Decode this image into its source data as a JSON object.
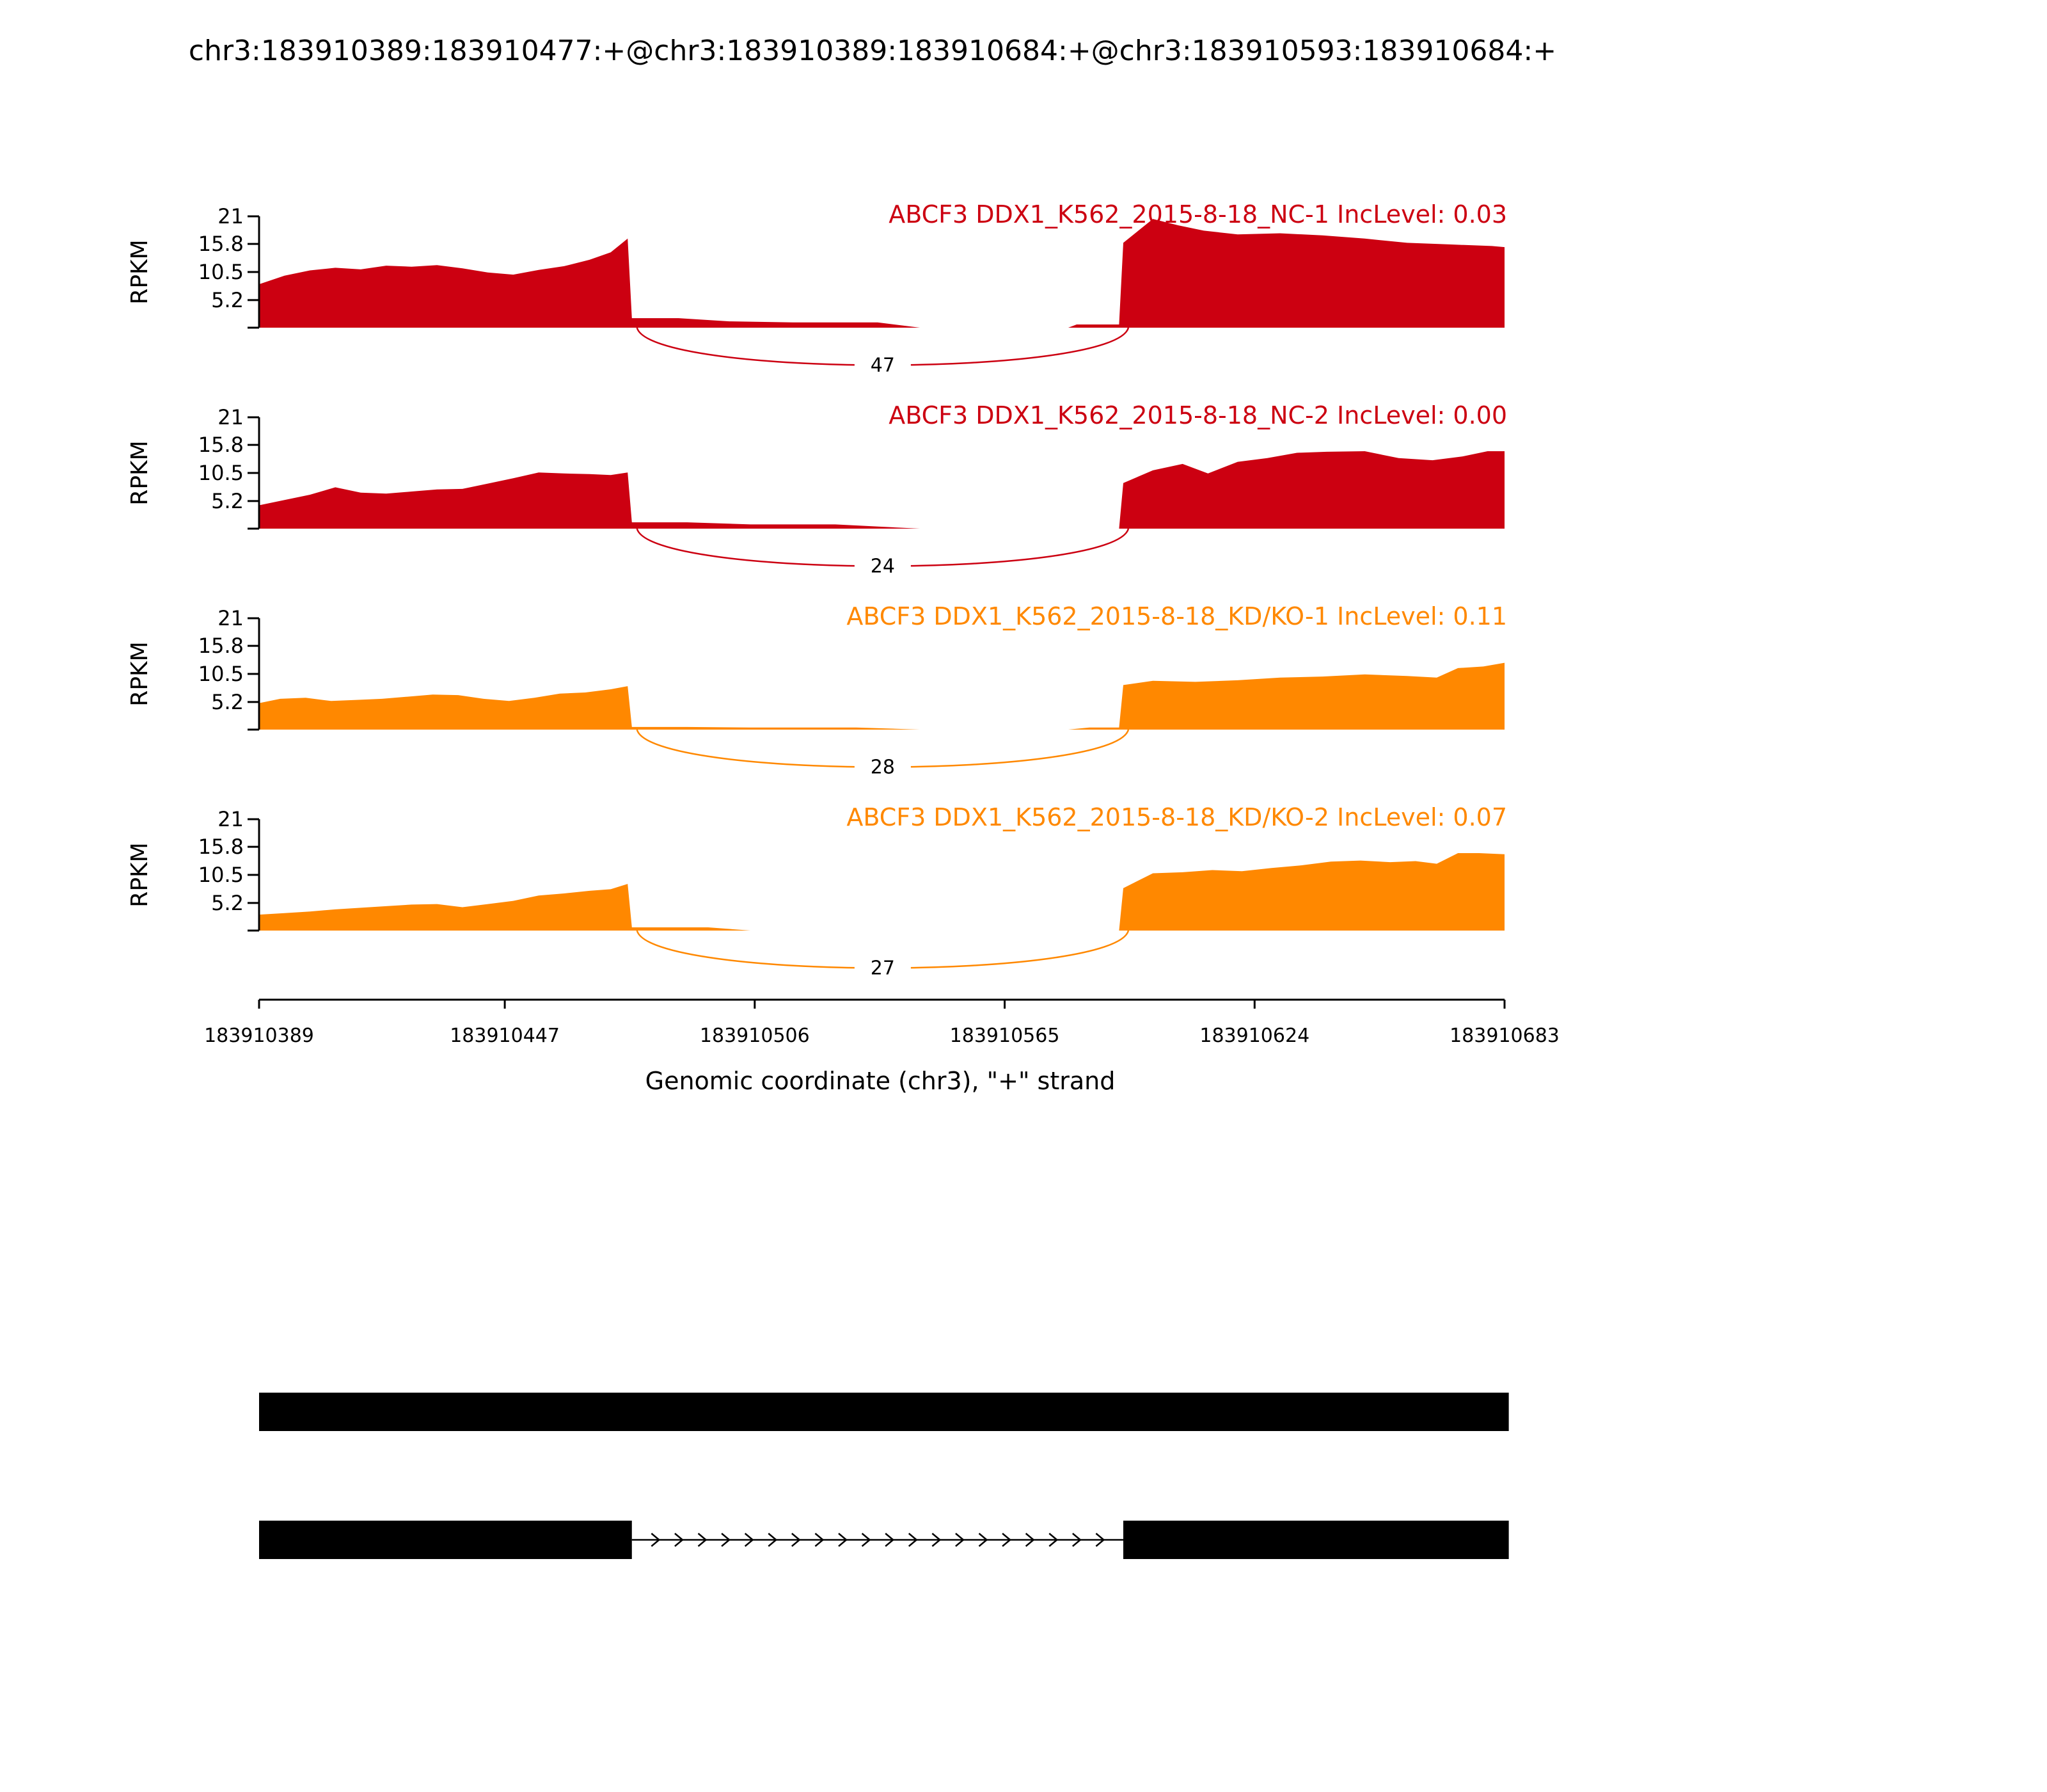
{
  "chart_data": {
    "type": "area",
    "title": "chr3:183910389:183910477:+@chr3:183910389:183910684:+@chr3:183910593:183910684:+",
    "xlabel": "Genomic coordinate (chr3), \"+\" strand",
    "ylabel": "RPKM",
    "xlim": [
      183910389,
      183910683
    ],
    "ylim": [
      0,
      21
    ],
    "x_ticks": [
      "183910389",
      "183910447",
      "183910506",
      "183910565",
      "183910624",
      "183910683"
    ],
    "y_ticks": [
      "21",
      "15.8",
      "10.5",
      "5.2"
    ],
    "junction": {
      "start": 183910477,
      "end": 183910593
    },
    "series": [
      {
        "name": "ABCF3 DDX1_K562_2015-8-18_NC-1 IncLevel: 0.03",
        "color": "#cc0011",
        "junction_count": "47",
        "coverage": [
          [
            183910389,
            8.2
          ],
          [
            183910395,
            9.8
          ],
          [
            183910401,
            10.8
          ],
          [
            183910407,
            11.3
          ],
          [
            183910413,
            11.0
          ],
          [
            183910419,
            11.7
          ],
          [
            183910425,
            11.5
          ],
          [
            183910431,
            11.8
          ],
          [
            183910437,
            11.2
          ],
          [
            183910443,
            10.4
          ],
          [
            183910449,
            10.0
          ],
          [
            183910455,
            10.9
          ],
          [
            183910461,
            11.6
          ],
          [
            183910467,
            12.8
          ],
          [
            183910472,
            14.2
          ],
          [
            183910476,
            16.8
          ],
          [
            183910477,
            1.8
          ],
          [
            183910488,
            1.8
          ],
          [
            183910500,
            1.2
          ],
          [
            183910515,
            1.0
          ],
          [
            183910535,
            1.0
          ],
          [
            183910545,
            0.0
          ],
          [
            183910580,
            0.0
          ],
          [
            183910582,
            0.6
          ],
          [
            183910592,
            0.6
          ],
          [
            183910593,
            16.0
          ],
          [
            183910600,
            20.5
          ],
          [
            183910606,
            19.3
          ],
          [
            183910612,
            18.3
          ],
          [
            183910620,
            17.6
          ],
          [
            183910630,
            17.8
          ],
          [
            183910640,
            17.4
          ],
          [
            183910650,
            16.8
          ],
          [
            183910660,
            16.0
          ],
          [
            183910670,
            15.7
          ],
          [
            183910680,
            15.4
          ],
          [
            183910683,
            15.2
          ]
        ]
      },
      {
        "name": "ABCF3 DDX1_K562_2015-8-18_NC-2 IncLevel: 0.00",
        "color": "#cc0011",
        "junction_count": "24",
        "coverage": [
          [
            183910389,
            4.4
          ],
          [
            183910395,
            5.4
          ],
          [
            183910401,
            6.4
          ],
          [
            183910407,
            7.8
          ],
          [
            183910413,
            6.8
          ],
          [
            183910419,
            6.6
          ],
          [
            183910425,
            7.0
          ],
          [
            183910431,
            7.4
          ],
          [
            183910437,
            7.5
          ],
          [
            183910443,
            8.5
          ],
          [
            183910449,
            9.5
          ],
          [
            183910455,
            10.6
          ],
          [
            183910461,
            10.4
          ],
          [
            183910467,
            10.3
          ],
          [
            183910472,
            10.1
          ],
          [
            183910476,
            10.6
          ],
          [
            183910477,
            1.2
          ],
          [
            183910490,
            1.2
          ],
          [
            183910505,
            0.8
          ],
          [
            183910525,
            0.8
          ],
          [
            183910545,
            0.0
          ],
          [
            183910580,
            0.0
          ],
          [
            183910592,
            0.0
          ],
          [
            183910593,
            8.6
          ],
          [
            183910600,
            11.0
          ],
          [
            183910607,
            12.2
          ],
          [
            183910613,
            10.4
          ],
          [
            183910620,
            12.6
          ],
          [
            183910627,
            13.3
          ],
          [
            183910634,
            14.3
          ],
          [
            183910641,
            14.5
          ],
          [
            183910650,
            14.6
          ],
          [
            183910658,
            13.3
          ],
          [
            183910666,
            12.9
          ],
          [
            183910673,
            13.6
          ],
          [
            183910679,
            14.6
          ],
          [
            183910683,
            14.6
          ]
        ]
      },
      {
        "name": "ABCF3 DDX1_K562_2015-8-18_KD/KO-1 IncLevel: 0.11",
        "color": "#ff8800",
        "junction_count": "28",
        "coverage": [
          [
            183910389,
            5.0
          ],
          [
            183910394,
            5.8
          ],
          [
            183910400,
            6.0
          ],
          [
            183910406,
            5.4
          ],
          [
            183910412,
            5.6
          ],
          [
            183910418,
            5.8
          ],
          [
            183910424,
            6.2
          ],
          [
            183910430,
            6.6
          ],
          [
            183910436,
            6.5
          ],
          [
            183910442,
            5.8
          ],
          [
            183910448,
            5.4
          ],
          [
            183910454,
            6.0
          ],
          [
            183910460,
            6.8
          ],
          [
            183910466,
            7.0
          ],
          [
            183910472,
            7.6
          ],
          [
            183910476,
            8.2
          ],
          [
            183910477,
            0.5
          ],
          [
            183910490,
            0.5
          ],
          [
            183910505,
            0.4
          ],
          [
            183910530,
            0.4
          ],
          [
            183910545,
            0.0
          ],
          [
            183910580,
            0.0
          ],
          [
            183910585,
            0.4
          ],
          [
            183910592,
            0.4
          ],
          [
            183910593,
            8.4
          ],
          [
            183910600,
            9.2
          ],
          [
            183910610,
            9.0
          ],
          [
            183910620,
            9.3
          ],
          [
            183910630,
            9.8
          ],
          [
            183910640,
            10.0
          ],
          [
            183910650,
            10.4
          ],
          [
            183910660,
            10.1
          ],
          [
            183910667,
            9.8
          ],
          [
            183910672,
            11.6
          ],
          [
            183910678,
            11.9
          ],
          [
            183910683,
            12.6
          ]
        ]
      },
      {
        "name": "ABCF3 DDX1_K562_2015-8-18_KD/KO-2 IncLevel: 0.07",
        "color": "#ff8800",
        "junction_count": "27",
        "coverage": [
          [
            183910389,
            3.0
          ],
          [
            183910395,
            3.3
          ],
          [
            183910401,
            3.6
          ],
          [
            183910407,
            4.0
          ],
          [
            183910413,
            4.3
          ],
          [
            183910419,
            4.6
          ],
          [
            183910425,
            4.9
          ],
          [
            183910431,
            5.0
          ],
          [
            183910437,
            4.4
          ],
          [
            183910443,
            5.0
          ],
          [
            183910449,
            5.6
          ],
          [
            183910455,
            6.6
          ],
          [
            183910461,
            7.0
          ],
          [
            183910467,
            7.5
          ],
          [
            183910472,
            7.8
          ],
          [
            183910476,
            8.8
          ],
          [
            183910477,
            0.6
          ],
          [
            183910495,
            0.6
          ],
          [
            183910505,
            0.0
          ],
          [
            183910580,
            0.0
          ],
          [
            183910592,
            0.0
          ],
          [
            183910593,
            8.0
          ],
          [
            183910600,
            10.8
          ],
          [
            183910607,
            11.0
          ],
          [
            183910614,
            11.4
          ],
          [
            183910621,
            11.2
          ],
          [
            183910628,
            11.8
          ],
          [
            183910635,
            12.3
          ],
          [
            183910642,
            13.0
          ],
          [
            183910649,
            13.2
          ],
          [
            183910656,
            12.9
          ],
          [
            183910662,
            13.1
          ],
          [
            183910667,
            12.6
          ],
          [
            183910672,
            14.6
          ],
          [
            183910677,
            14.6
          ],
          [
            183910683,
            14.4
          ]
        ]
      }
    ],
    "isoforms": [
      {
        "exons": [
          [
            183910389,
            183910684
          ]
        ]
      },
      {
        "exons": [
          [
            183910389,
            183910477
          ],
          [
            183910593,
            183910684
          ]
        ]
      }
    ]
  }
}
